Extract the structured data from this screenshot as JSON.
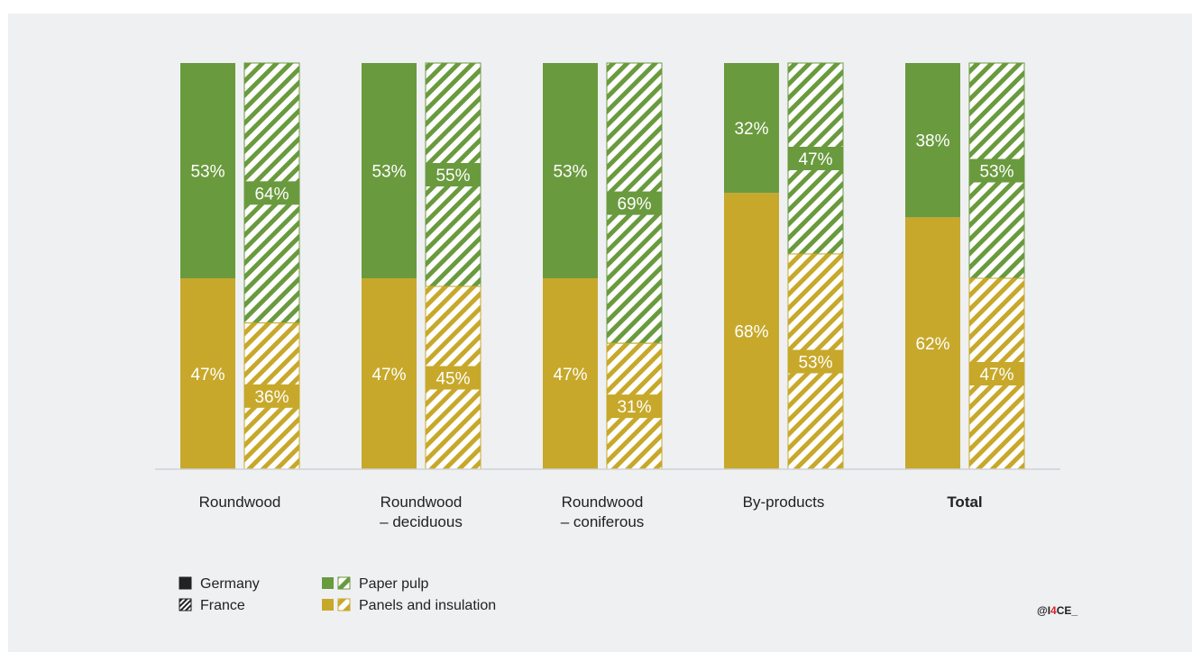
{
  "chart_data": {
    "type": "bar",
    "stacked": true,
    "normalized_percent": true,
    "categories": [
      [
        "Roundwood"
      ],
      [
        "Roundwood",
        "– deciduous"
      ],
      [
        "Roundwood",
        "– coniferous"
      ],
      [
        "By-products"
      ],
      [
        "Total"
      ]
    ],
    "bold_categories": [
      "Total"
    ],
    "countries": [
      {
        "name": "Germany",
        "style": "solid"
      },
      {
        "name": "France",
        "style": "hatched"
      }
    ],
    "series": [
      {
        "name": "Paper pulp",
        "color": "#6a9a3e"
      },
      {
        "name": "Panels and insulation",
        "color": "#c7a82a"
      }
    ],
    "values": {
      "Germany": {
        "Paper pulp": [
          53,
          53,
          53,
          32,
          38
        ],
        "Panels and insulation": [
          47,
          47,
          47,
          68,
          62
        ]
      },
      "France": {
        "Paper pulp": [
          64,
          55,
          69,
          47,
          53
        ],
        "Panels and insulation": [
          36,
          45,
          31,
          53,
          47
        ]
      }
    },
    "ylim": [
      0,
      100
    ],
    "legend_position": "bottom-left"
  },
  "credit": {
    "prefix": "@I",
    "accent": "4",
    "suffix": "CE_",
    "accent_color": "#d8232a"
  }
}
